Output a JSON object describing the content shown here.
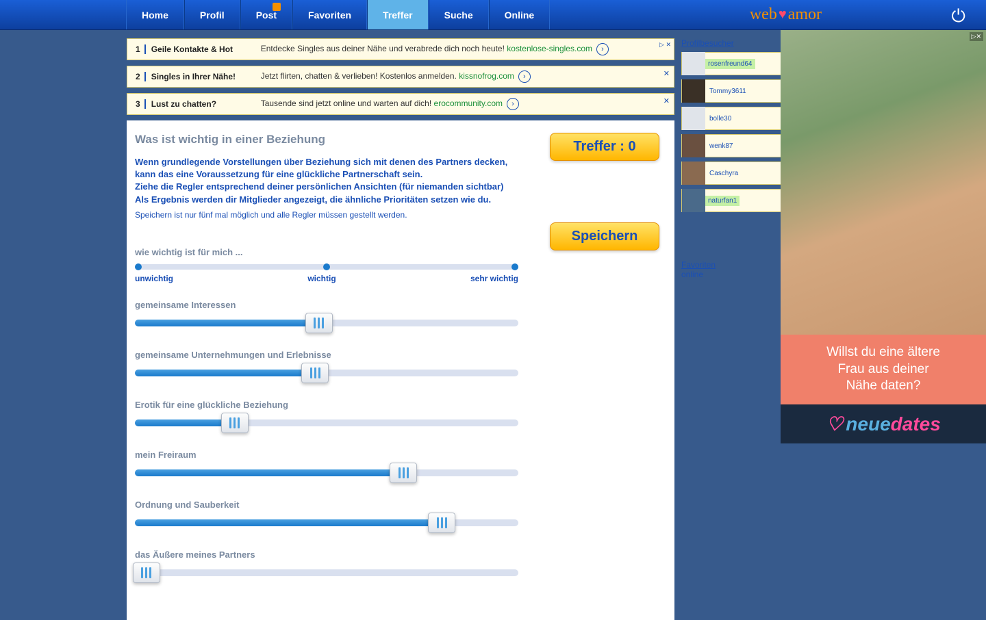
{
  "nav": {
    "items": [
      "Home",
      "Profil",
      "Post",
      "Favoriten",
      "Treffer",
      "Suche",
      "Online"
    ],
    "active_index": 4
  },
  "brand": {
    "left": "web",
    "right": "amor"
  },
  "ads": [
    {
      "num": "1",
      "title": "Geile Kontakte & Hot",
      "text": "Entdecke Singles aus deiner Nähe und verabrede dich noch heute! ",
      "link": "kostenlose-singles.com",
      "has_choices": true
    },
    {
      "num": "2",
      "title": "Singles in Ihrer Nähe!",
      "text": "Jetzt flirten, chatten & verlieben! Kostenlos anmelden. ",
      "link": "kissnofrog.com",
      "has_choices": false
    },
    {
      "num": "3",
      "title": "Lust zu chatten?",
      "text": "Tausende sind jetzt online und warten auf dich! ",
      "link": "erocommunity.com",
      "has_choices": false
    }
  ],
  "panel": {
    "heading": "Was ist wichtig in einer Beziehung",
    "intro_lines": [
      "Wenn grundlegende Vorstellungen über Beziehung sich mit denen des Partners decken, kann das eine Voraussetzung für eine glückliche Partnerschaft sein.",
      "Ziehe die Regler entsprechend deiner persönlichen Ansichten (für niemanden sichtbar)",
      "Als Ergebnis werden dir Mitglieder angezeigt, die ähnliche Prioritäten setzen wie du."
    ],
    "note": "Speichern ist nur fünf mal möglich und alle Regler müssen gestellt werden.",
    "treffer_label": "Treffer :  0",
    "save_label": "Speichern"
  },
  "legend": {
    "head": "wie wichtig ist für mich ...",
    "labels": [
      "unwichtig",
      "wichtig",
      "sehr wichtig"
    ]
  },
  "sliders": [
    {
      "label": "gemeinsame Interessen",
      "value": 48
    },
    {
      "label": "gemeinsame Unternehmungen und Erlebnisse",
      "value": 47
    },
    {
      "label": "Erotik für eine glückliche Beziehung",
      "value": 26
    },
    {
      "label": "mein Freiraum",
      "value": 70
    },
    {
      "label": "Ordnung und Sauberkeit",
      "value": 80
    },
    {
      "label": "das Äußere meines Partners",
      "value": 3
    }
  ],
  "sidebar": {
    "visitors_head": "Profilbesucher",
    "visitors": [
      {
        "name": "rosenfreund64",
        "online": true,
        "thumb": "#e0e4ea"
      },
      {
        "name": "Tommy3611",
        "online": false,
        "thumb": "#3a3026"
      },
      {
        "name": "bolle30",
        "online": false,
        "thumb": "#e0e4ea"
      },
      {
        "name": "wenk87",
        "online": false,
        "thumb": "#6a5040"
      },
      {
        "name": "Caschyra",
        "online": false,
        "thumb": "#8a6a50"
      },
      {
        "name": "naturfan1",
        "online": true,
        "thumb": "#4a6a8a"
      }
    ],
    "fav_label": "Favoriten",
    "fav_online": "online"
  },
  "side_ad": {
    "line1": "Willst du eine ältere",
    "line2": "Frau aus deiner",
    "line3": "Nähe daten?",
    "logo_left": "neue",
    "logo_right": "dates"
  },
  "colors": {
    "page_bg": "#375a8c",
    "nav_grad_top": "#1a5fd6",
    "nav_grad_bot": "#0d3f9e",
    "nav_active": "#5fb3e8",
    "brand": "#f59000",
    "link_blue": "#1a4fb5",
    "slider_fill": "#1a7acc",
    "btn_yellow_top": "#ffe266",
    "btn_yellow_bot": "#ffb600",
    "ad_bg": "#fffbe6"
  }
}
